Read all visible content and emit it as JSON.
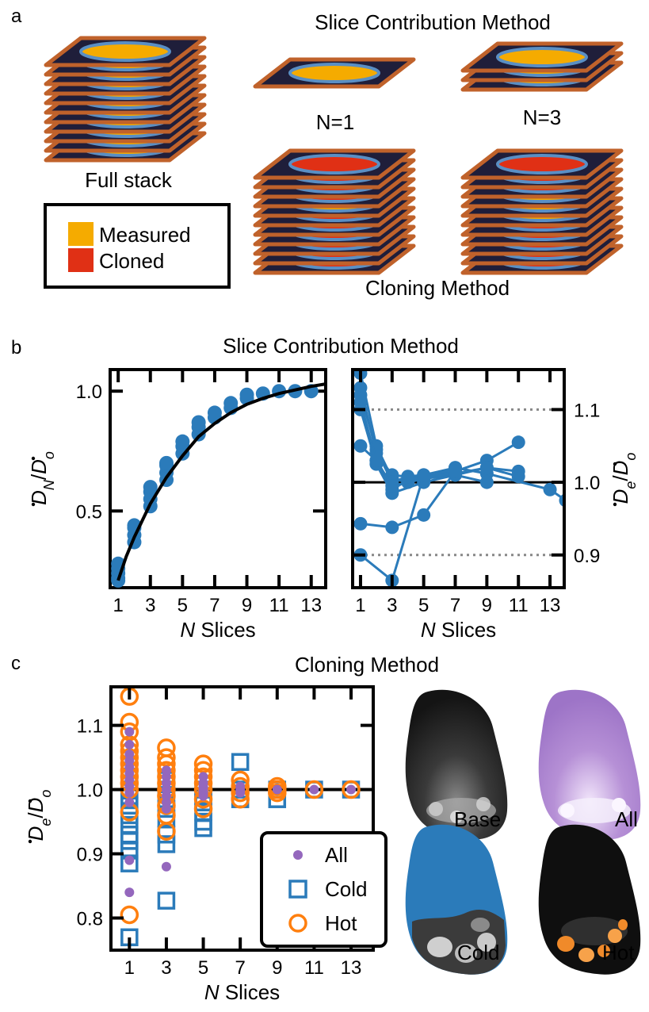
{
  "panels": {
    "a": {
      "letter": "a",
      "title": "Slice Contribution Method",
      "full_stack_label": "Full stack",
      "n1_label": "N=1",
      "n3_label": "N=3",
      "cloning_label": "Cloning Method",
      "legend": [
        {
          "label": "Measured",
          "color": "#f5ab00"
        },
        {
          "label": "Cloned",
          "color": "#e03015"
        }
      ]
    },
    "b": {
      "letter": "b",
      "title": "Slice Contribution Method"
    },
    "c": {
      "letter": "c",
      "title": "Cloning Method"
    }
  },
  "colors": {
    "blue": "#2b7bba",
    "purple": "#9467bd",
    "orange": "#ff7f0e",
    "measured": "#f5ab00",
    "cloned": "#e03015",
    "slice_dark": "#1f1e3a",
    "slice_edge": "#c0622b",
    "ellipse_edge": "#5a8fc4"
  },
  "images": {
    "labels": [
      "Base",
      "All",
      "Cold",
      "Hot"
    ]
  },
  "chart_data": [
    {
      "id": "b-left",
      "type": "scatter",
      "xlabel_italic": "N",
      "xlabel": " Slices",
      "ylabel": "Ḋ_N/Ḋ_o",
      "xlim": [
        0.5,
        13.9
      ],
      "ylim": [
        0.18,
        1.09
      ],
      "xticks": [
        1,
        3,
        5,
        7,
        9,
        11,
        13
      ],
      "yticks": [
        0.5,
        1.0
      ],
      "ytick_labels": [
        "0.5",
        "1.0"
      ],
      "points": [
        [
          1,
          0.24
        ],
        [
          1,
          0.22
        ],
        [
          1,
          0.26
        ],
        [
          1,
          0.28
        ],
        [
          1,
          0.21
        ],
        [
          2,
          0.37
        ],
        [
          2,
          0.4
        ],
        [
          2,
          0.43
        ],
        [
          2,
          0.44
        ],
        [
          3,
          0.52
        ],
        [
          3,
          0.55
        ],
        [
          3,
          0.58
        ],
        [
          3,
          0.6
        ],
        [
          4,
          0.63
        ],
        [
          4,
          0.66
        ],
        [
          4,
          0.69
        ],
        [
          4,
          0.7
        ],
        [
          5,
          0.74
        ],
        [
          5,
          0.77
        ],
        [
          5,
          0.79
        ],
        [
          6,
          0.82
        ],
        [
          6,
          0.85
        ],
        [
          6,
          0.87
        ],
        [
          7,
          0.89
        ],
        [
          7,
          0.91
        ],
        [
          8,
          0.93
        ],
        [
          8,
          0.95
        ],
        [
          9,
          0.97
        ],
        [
          9,
          0.985
        ],
        [
          10,
          0.99
        ],
        [
          11,
          1.0
        ],
        [
          12,
          1.0
        ],
        [
          13,
          1.0
        ]
      ],
      "fit_curve": [
        [
          1,
          0.21
        ],
        [
          1.5,
          0.31
        ],
        [
          2,
          0.39
        ],
        [
          3,
          0.53
        ],
        [
          4,
          0.64
        ],
        [
          5,
          0.73
        ],
        [
          6,
          0.81
        ],
        [
          7,
          0.865
        ],
        [
          8,
          0.91
        ],
        [
          9,
          0.945
        ],
        [
          10,
          0.97
        ],
        [
          11,
          0.99
        ],
        [
          12,
          1.005
        ],
        [
          13,
          1.02
        ],
        [
          13.9,
          1.03
        ]
      ]
    },
    {
      "id": "b-right",
      "type": "line",
      "xlabel_italic": "N",
      "xlabel": " Slices",
      "ylabel": "Ḋ_e/Ḋ_o",
      "xlim": [
        0.5,
        13.9
      ],
      "ylim": [
        0.855,
        1.155
      ],
      "xticks": [
        1,
        3,
        5,
        7,
        9,
        11,
        13
      ],
      "yticks": [
        0.9,
        1.0,
        1.1
      ],
      "ytick_labels": [
        "0.9",
        "1.0",
        "1.1"
      ],
      "reference_line": 1.0,
      "dotted_lines": [
        0.9,
        1.1
      ],
      "series": [
        {
          "x": [
            1,
            2,
            3,
            4,
            5,
            7,
            9,
            11
          ],
          "y": [
            1.15,
            1.05,
            1.005,
            1.0,
            1.008,
            1.015,
            1.03,
            1.055
          ]
        },
        {
          "x": [
            1,
            2,
            3,
            5,
            7,
            9,
            11
          ],
          "y": [
            1.13,
            1.04,
            1.01,
            1.005,
            1.01,
            1.02,
            1.015
          ]
        },
        {
          "x": [
            1,
            2,
            3,
            4,
            5,
            7,
            9,
            13,
            14
          ],
          "y": [
            1.12,
            1.045,
            1.0,
            1.008,
            1.01,
            1.02,
            1.012,
            0.99,
            0.975
          ]
        },
        {
          "x": [
            1,
            2,
            3,
            4,
            5,
            7,
            9,
            11
          ],
          "y": [
            1.11,
            1.03,
            0.99,
            1.003,
            1.008,
            1.012,
            1.02,
            1.008
          ]
        },
        {
          "x": [
            1,
            2,
            3,
            5,
            7,
            9
          ],
          "y": [
            1.1,
            1.025,
            0.985,
            1.0,
            1.01,
            1.0
          ]
        },
        {
          "x": [
            1,
            2,
            3,
            5,
            7
          ],
          "y": [
            1.05,
            1.03,
            0.995,
            1.005,
            1.02
          ]
        },
        {
          "x": [
            1,
            3,
            5,
            7
          ],
          "y": [
            0.943,
            0.938,
            0.955,
            1.015
          ]
        },
        {
          "x": [
            1,
            3,
            5
          ],
          "y": [
            0.9,
            0.865,
            1.01
          ]
        }
      ]
    },
    {
      "id": "c-scatter",
      "type": "scatter",
      "xlabel_italic": "N",
      "xlabel": " Slices",
      "ylabel": "Ḋ_e/Ḋ_o",
      "xlim": [
        0.0,
        14.2
      ],
      "ylim": [
        0.75,
        1.16
      ],
      "xticks": [
        1,
        3,
        5,
        7,
        9,
        11,
        13
      ],
      "yticks": [
        0.8,
        0.9,
        1.0,
        1.1
      ],
      "ytick_labels": [
        "0.8",
        "0.9",
        "1.0",
        "1.1"
      ],
      "reference_line": 1.0,
      "legend": [
        "All",
        "Cold",
        "Hot"
      ],
      "series": [
        {
          "name": "Cold",
          "marker": "square",
          "points": [
            [
              1,
              0.77
            ],
            [
              1,
              0.885
            ],
            [
              1,
              0.905
            ],
            [
              1,
              0.92
            ],
            [
              1,
              0.93
            ],
            [
              1,
              0.945
            ],
            [
              1,
              0.96
            ],
            [
              1,
              0.975
            ],
            [
              1,
              0.99
            ],
            [
              1,
              1.0
            ],
            [
              1,
              1.02
            ],
            [
              3,
              0.827
            ],
            [
              3,
              0.915
            ],
            [
              3,
              0.93
            ],
            [
              3,
              0.955
            ],
            [
              3,
              0.97
            ],
            [
              3,
              0.985
            ],
            [
              3,
              1.0
            ],
            [
              3,
              1.015
            ],
            [
              5,
              0.94
            ],
            [
              5,
              0.95
            ],
            [
              5,
              0.965
            ],
            [
              5,
              0.98
            ],
            [
              5,
              0.99
            ],
            [
              5,
              1.0
            ],
            [
              7,
              1.043
            ],
            [
              7,
              0.985
            ],
            [
              7,
              1.0
            ],
            [
              9,
              0.985
            ],
            [
              9,
              1.0
            ],
            [
              11,
              1.0
            ],
            [
              13,
              1.0
            ]
          ]
        },
        {
          "name": "Hot",
          "marker": "circle",
          "points": [
            [
              1,
              0.805
            ],
            [
              1,
              0.965
            ],
            [
              1,
              1.0
            ],
            [
              1,
              1.01
            ],
            [
              1,
              1.02
            ],
            [
              1,
              1.03
            ],
            [
              1,
              1.04
            ],
            [
              1,
              1.05
            ],
            [
              1,
              1.06
            ],
            [
              1,
              1.07
            ],
            [
              1,
              1.09
            ],
            [
              1,
              1.105
            ],
            [
              1,
              1.145
            ],
            [
              3,
              0.935
            ],
            [
              3,
              0.96
            ],
            [
              3,
              0.975
            ],
            [
              3,
              0.99
            ],
            [
              3,
              1.0
            ],
            [
              3,
              1.01
            ],
            [
              3,
              1.02
            ],
            [
              3,
              1.03
            ],
            [
              3,
              1.04
            ],
            [
              3,
              1.05
            ],
            [
              3,
              1.065
            ],
            [
              5,
              0.97
            ],
            [
              5,
              0.985
            ],
            [
              5,
              1.0
            ],
            [
              5,
              1.01
            ],
            [
              5,
              1.02
            ],
            [
              5,
              1.03
            ],
            [
              5,
              1.04
            ],
            [
              7,
              0.985
            ],
            [
              7,
              0.995
            ],
            [
              7,
              1.005
            ],
            [
              7,
              1.015
            ],
            [
              9,
              0.995
            ],
            [
              9,
              1.0
            ],
            [
              9,
              1.005
            ],
            [
              11,
              1.0
            ],
            [
              13,
              1.0
            ]
          ]
        },
        {
          "name": "All",
          "marker": "dot",
          "points": [
            [
              1,
              0.84
            ],
            [
              1,
              0.89
            ],
            [
              1,
              0.98
            ],
            [
              1,
              0.995
            ],
            [
              1,
              1.005
            ],
            [
              1,
              1.015
            ],
            [
              1,
              1.025
            ],
            [
              1,
              1.035
            ],
            [
              1,
              1.045
            ],
            [
              1,
              1.055
            ],
            [
              1,
              1.07
            ],
            [
              1,
              1.09
            ],
            [
              3,
              0.88
            ],
            [
              3,
              0.97
            ],
            [
              3,
              0.98
            ],
            [
              3,
              0.99
            ],
            [
              3,
              1.0
            ],
            [
              3,
              1.01
            ],
            [
              3,
              1.02
            ],
            [
              3,
              1.03
            ],
            [
              5,
              0.99
            ],
            [
              5,
              0.995
            ],
            [
              5,
              1.0
            ],
            [
              5,
              1.005
            ],
            [
              5,
              1.01
            ],
            [
              5,
              1.02
            ],
            [
              7,
              0.995
            ],
            [
              7,
              1.0
            ],
            [
              7,
              1.005
            ],
            [
              9,
              1.0
            ],
            [
              11,
              1.0
            ],
            [
              13,
              1.0
            ]
          ]
        }
      ]
    }
  ]
}
